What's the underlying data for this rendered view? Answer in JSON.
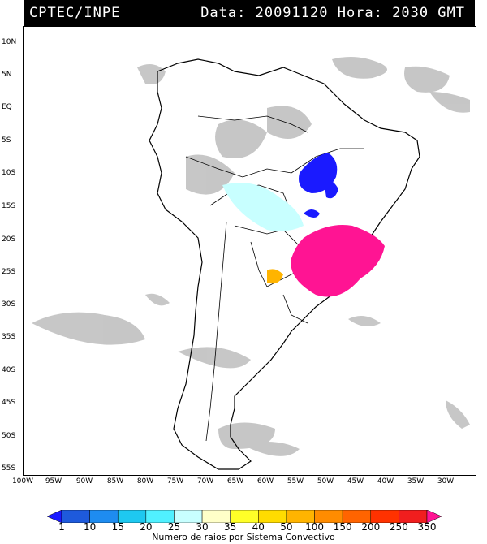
{
  "header": {
    "source": "CPTEC/INPE",
    "info": "Data: 20091120 Hora: 2030 GMT"
  },
  "lat_labels": [
    "10N",
    "5N",
    "EQ",
    "5S",
    "10S",
    "15S",
    "20S",
    "25S",
    "30S",
    "35S",
    "40S",
    "45S",
    "50S",
    "55S"
  ],
  "lon_labels": [
    "100W",
    "95W",
    "90W",
    "85W",
    "80W",
    "75W",
    "70W",
    "65W",
    "60W",
    "55W",
    "50W",
    "45W",
    "40W",
    "35W",
    "30W"
  ],
  "colorbar": {
    "labels": [
      "1",
      "10",
      "15",
      "20",
      "25",
      "30",
      "35",
      "40",
      "50",
      "100",
      "150",
      "200",
      "250",
      "350"
    ],
    "colors": [
      "#1a1aff",
      "#1e5adc",
      "#1e8cf0",
      "#1ec8f0",
      "#50f0ff",
      "#c8ffff",
      "#ffffc8",
      "#ffff28",
      "#ffdc00",
      "#ffb400",
      "#ff8c00",
      "#ff6400",
      "#ff3200",
      "#f01e1e",
      "#ff1493"
    ],
    "title": "Numero de raios por Sistema Convectivo"
  },
  "map": {
    "background_color": "#ffffff",
    "cloud_color": "#bdbdbd",
    "border_color": "#000000"
  }
}
